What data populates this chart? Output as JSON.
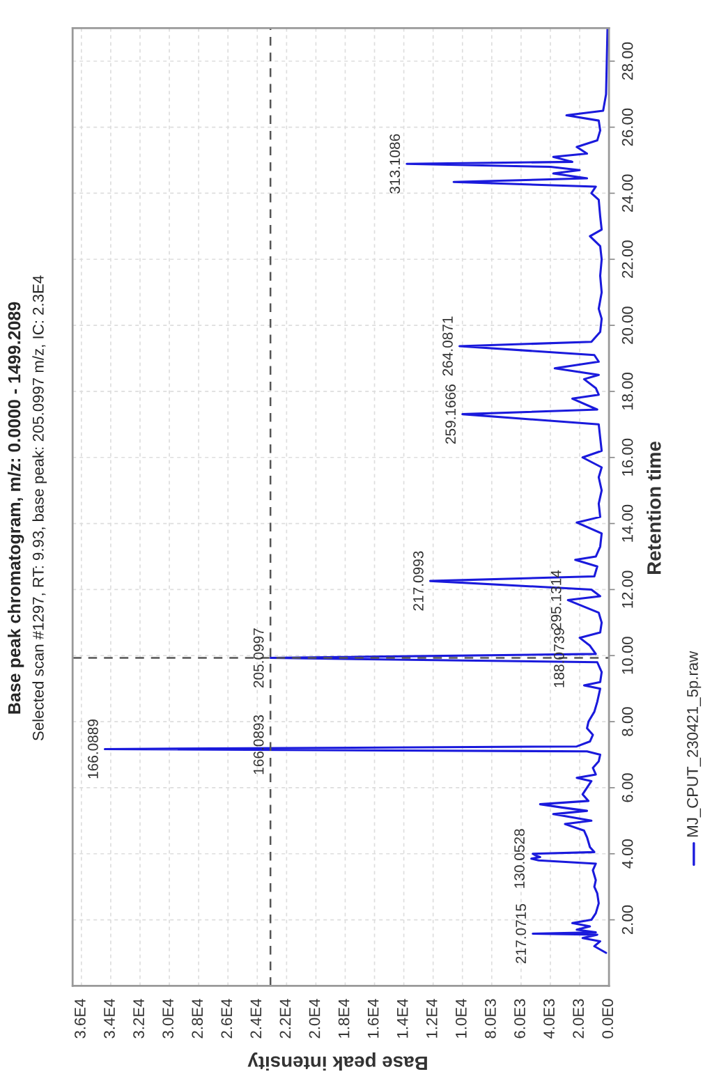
{
  "chart_data": {
    "type": "line",
    "orientation": "horizontal",
    "title": "Base peak chromatogram, m/z: 0.0000 - 1499.2089",
    "subtitle": "Selected scan #1297, RT: 9.93, base peak: 205.0997 m/z, IC: 2.3E4",
    "xlabel": "Base peak intensity",
    "ylabel": "Retention time",
    "xlim": [
      36600,
      0
    ],
    "ylim": [
      0,
      29
    ],
    "xticks": [
      {
        "value": 0,
        "label": "0.0E0"
      },
      {
        "value": 2000,
        "label": "2.0E3"
      },
      {
        "value": 4000,
        "label": "4.0E3"
      },
      {
        "value": 6000,
        "label": "6.0E3"
      },
      {
        "value": 8000,
        "label": "8.0E3"
      },
      {
        "value": 10000,
        "label": "1.0E4"
      },
      {
        "value": 12000,
        "label": "1.2E4"
      },
      {
        "value": 14000,
        "label": "1.4E4"
      },
      {
        "value": 16000,
        "label": "1.6E4"
      },
      {
        "value": 18000,
        "label": "1.8E4"
      },
      {
        "value": 20000,
        "label": "2.0E4"
      },
      {
        "value": 22000,
        "label": "2.2E4"
      },
      {
        "value": 24000,
        "label": "2.4E4"
      },
      {
        "value": 26000,
        "label": "2.6E4"
      },
      {
        "value": 28000,
        "label": "2.8E4"
      },
      {
        "value": 30000,
        "label": "3.0E4"
      },
      {
        "value": 32000,
        "label": "3.2E4"
      },
      {
        "value": 34000,
        "label": "3.4E4"
      },
      {
        "value": 36000,
        "label": "3.6E4"
      }
    ],
    "yticks": [
      {
        "value": 2,
        "label": "2.00"
      },
      {
        "value": 4,
        "label": "4.00"
      },
      {
        "value": 6,
        "label": "6.00"
      },
      {
        "value": 8,
        "label": "8.00"
      },
      {
        "value": 10,
        "label": "10.00"
      },
      {
        "value": 12,
        "label": "12.00"
      },
      {
        "value": 14,
        "label": "14.00"
      },
      {
        "value": 16,
        "label": "16.00"
      },
      {
        "value": 18,
        "label": "18.00"
      },
      {
        "value": 20,
        "label": "20.00"
      },
      {
        "value": 22,
        "label": "22.00"
      },
      {
        "value": 24,
        "label": "24.00"
      },
      {
        "value": 26,
        "label": "26.00"
      },
      {
        "value": 28,
        "label": "28.00"
      }
    ],
    "grid": true,
    "legend": "right",
    "ref_lines": [
      {
        "axis": "x",
        "value": 23100,
        "color": "#555555",
        "line_style": "dashed"
      },
      {
        "axis": "y",
        "value": 9.93,
        "color": "#555555",
        "line_style": "dashed"
      }
    ],
    "annotations": [
      {
        "text": "217.0715",
        "x": 5200,
        "y": 1.58
      },
      {
        "text": "130.0528",
        "x": 5300,
        "y": 3.85
      },
      {
        "text": "166.0889",
        "x": 34400,
        "y": 7.17
      },
      {
        "text": "166.0893",
        "x": 23100,
        "y": 7.3
      },
      {
        "text": "205.0997",
        "x": 23100,
        "y": 9.93
      },
      {
        "text": "188.0739",
        "x": 2600,
        "y": 9.93
      },
      {
        "text": "295.1314",
        "x": 2800,
        "y": 11.68
      },
      {
        "text": "217.0993",
        "x": 12200,
        "y": 12.26
      },
      {
        "text": "259.1666",
        "x": 10000,
        "y": 17.31
      },
      {
        "text": "264.0871",
        "x": 10200,
        "y": 19.37
      },
      {
        "text": "313.1086",
        "x": 13800,
        "y": 24.89
      }
    ],
    "series": [
      {
        "name": "MJ_CPUT_230421_5p.raw",
        "color": "#1a1adc",
        "x": [
          1.0,
          1.2,
          1.35,
          1.45,
          1.55,
          1.58,
          1.62,
          1.7,
          1.8,
          1.9,
          2.0,
          2.2,
          2.5,
          2.8,
          3.0,
          3.2,
          3.5,
          3.7,
          3.8,
          3.85,
          3.9,
          3.95,
          4.0,
          4.05,
          4.2,
          4.5,
          4.7,
          4.9,
          5.0,
          5.2,
          5.3,
          5.4,
          5.5,
          5.6,
          5.8,
          6.0,
          6.2,
          6.3,
          6.4,
          6.6,
          6.8,
          7.0,
          7.1,
          7.17,
          7.25,
          7.4,
          7.6,
          7.8,
          8.0,
          8.3,
          8.6,
          9.0,
          9.1,
          9.2,
          9.5,
          9.8,
          9.93,
          10.05,
          10.3,
          10.54,
          10.7,
          11.0,
          11.3,
          11.68,
          11.8,
          12.0,
          12.26,
          12.4,
          12.7,
          12.9,
          13.0,
          13.3,
          13.7,
          14.03,
          14.2,
          14.6,
          15.0,
          15.4,
          15.7,
          16.0,
          16.2,
          16.6,
          17.0,
          17.31,
          17.45,
          17.78,
          17.9,
          18.1,
          18.37,
          18.5,
          18.7,
          18.9,
          19.1,
          19.37,
          19.5,
          19.8,
          20.2,
          20.5,
          21.0,
          21.5,
          22.0,
          22.4,
          22.7,
          22.9,
          23.3,
          23.8,
          24.0,
          24.2,
          24.34,
          24.45,
          24.6,
          24.7,
          24.8,
          24.89,
          24.95,
          25.1,
          25.2,
          25.4,
          25.6,
          25.9,
          26.2,
          26.36,
          26.5,
          27.0,
          28.0,
          29.0
        ],
        "values": [
          200,
          1000,
          600,
          1800,
          800,
          5200,
          900,
          2200,
          1300,
          2500,
          1200,
          900,
          700,
          800,
          1000,
          900,
          1100,
          900,
          4800,
          5300,
          4700,
          5000,
          5200,
          1000,
          1300,
          1500,
          1700,
          3000,
          1200,
          3800,
          1500,
          3200,
          4700,
          1400,
          1800,
          1500,
          1200,
          2200,
          900,
          1100,
          700,
          600,
          1500,
          34400,
          2200,
          1300,
          1100,
          1500,
          1400,
          1000,
          800,
          600,
          1700,
          600,
          500,
          800,
          23100,
          900,
          1300,
          2000,
          600,
          500,
          700,
          2800,
          600,
          1200,
          12200,
          1000,
          800,
          2300,
          900,
          600,
          500,
          2200,
          600,
          700,
          500,
          700,
          500,
          1800,
          500,
          600,
          700,
          10000,
          800,
          2500,
          700,
          900,
          1700,
          700,
          3700,
          700,
          1000,
          10200,
          1200,
          600,
          500,
          700,
          500,
          600,
          500,
          600,
          1300,
          500,
          600,
          700,
          1200,
          900,
          10600,
          1500,
          3800,
          2000,
          4000,
          13800,
          2500,
          3800,
          1500,
          2200,
          800,
          600,
          700,
          2900,
          400,
          200,
          150,
          100
        ]
      }
    ]
  }
}
